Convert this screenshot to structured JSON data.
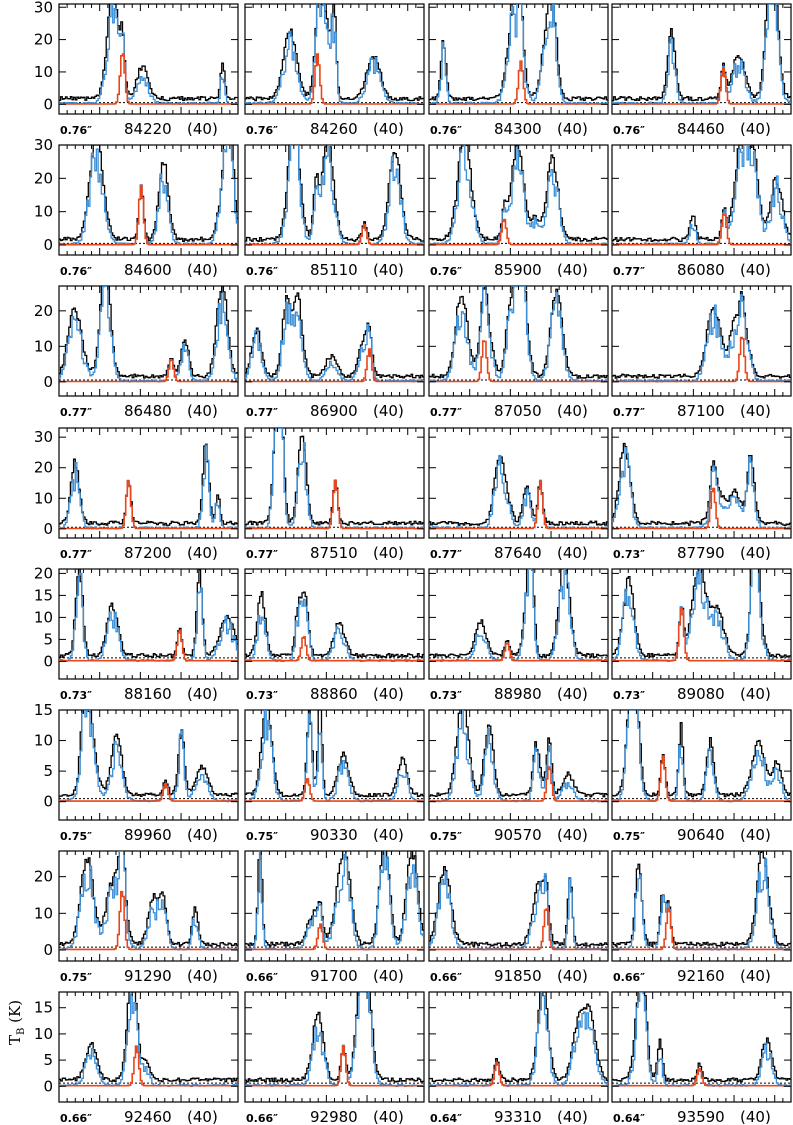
{
  "chart_data": {
    "type": "line",
    "title": "",
    "ylabel": "T",
    "ylabel_sub": "B",
    "ylabel_unit": " (K)",
    "colors": {
      "observed": "#000000",
      "model_all": "#3a8fd8",
      "model_species": "#e8461b",
      "baseline": "#000000"
    },
    "rows": [
      {
        "ylim": [
          -3,
          31
        ],
        "yticks": [
          0,
          10,
          20,
          30
        ]
      },
      {
        "ylim": [
          -3,
          30
        ],
        "yticks": [
          0,
          10,
          20,
          30
        ]
      },
      {
        "ylim": [
          -4,
          27
        ],
        "yticks": [
          0,
          10,
          20
        ]
      },
      {
        "ylim": [
          -3,
          33
        ],
        "yticks": [
          0,
          10,
          20,
          30
        ]
      },
      {
        "ylim": [
          -4,
          21
        ],
        "yticks": [
          0,
          5,
          10,
          15,
          20
        ]
      },
      {
        "ylim": [
          -3,
          15
        ],
        "yticks": [
          0,
          5,
          10,
          15
        ]
      },
      {
        "ylim": [
          -3,
          27
        ],
        "yticks": [
          0,
          10,
          20
        ]
      },
      {
        "ylim": [
          -3,
          18
        ],
        "yticks": [
          0,
          5,
          10,
          15
        ]
      }
    ],
    "panels": [
      {
        "freq": "84220",
        "width": "(40)",
        "res": "0.76″",
        "base": 0.5
      },
      {
        "freq": "84260",
        "width": "(40)",
        "res": "0.76″",
        "base": 0.5
      },
      {
        "freq": "84300",
        "width": "(40)",
        "res": "0.76″",
        "base": 0.5
      },
      {
        "freq": "84460",
        "width": "(40)",
        "res": "0.76″",
        "base": 0.5
      },
      {
        "freq": "84600",
        "width": "(40)",
        "res": "0.76″",
        "base": 0.5
      },
      {
        "freq": "85110",
        "width": "(40)",
        "res": "0.76″",
        "base": 0.5
      },
      {
        "freq": "85900",
        "width": "(40)",
        "res": "0.76″",
        "base": 0.5
      },
      {
        "freq": "86080",
        "width": "(40)",
        "res": "0.77″",
        "base": 0.5
      },
      {
        "freq": "86480",
        "width": "(40)",
        "res": "0.77″",
        "base": 0.5
      },
      {
        "freq": "86900",
        "width": "(40)",
        "res": "0.77″",
        "base": 0.5
      },
      {
        "freq": "87050",
        "width": "(40)",
        "res": "0.77″",
        "base": 0.5
      },
      {
        "freq": "87100",
        "width": "(40)",
        "res": "0.77″",
        "base": 0.5
      },
      {
        "freq": "87200",
        "width": "(40)",
        "res": "0.77″",
        "base": 0.5
      },
      {
        "freq": "87510",
        "width": "(40)",
        "res": "0.77″",
        "base": 0.5
      },
      {
        "freq": "87640",
        "width": "(40)",
        "res": "0.77″",
        "base": 0.5
      },
      {
        "freq": "87790",
        "width": "(40)",
        "res": "0.73″",
        "base": 0.5
      },
      {
        "freq": "88160",
        "width": "(40)",
        "res": "0.73″",
        "base": 0.8
      },
      {
        "freq": "88860",
        "width": "(40)",
        "res": "0.73″",
        "base": 0.8
      },
      {
        "freq": "88980",
        "width": "(40)",
        "res": "0.73″",
        "base": 0.8
      },
      {
        "freq": "89080",
        "width": "(40)",
        "res": "0.73″",
        "base": 0.8
      },
      {
        "freq": "89960",
        "width": "(40)",
        "res": "0.75″",
        "base": 0.5
      },
      {
        "freq": "90330",
        "width": "(40)",
        "res": "0.75″",
        "base": 0.5
      },
      {
        "freq": "90570",
        "width": "(40)",
        "res": "0.75″",
        "base": 0.5
      },
      {
        "freq": "90640",
        "width": "(40)",
        "res": "0.75″",
        "base": 0.5
      },
      {
        "freq": "91290",
        "width": "(40)",
        "res": "0.75″",
        "base": 0.8
      },
      {
        "freq": "91700",
        "width": "(40)",
        "res": "0.66″",
        "base": 0.8
      },
      {
        "freq": "91850",
        "width": "(40)",
        "res": "0.66″",
        "base": 0.8
      },
      {
        "freq": "92160",
        "width": "(40)",
        "res": "0.66″",
        "base": 0.8
      },
      {
        "freq": "92460",
        "width": "(40)",
        "res": "0.66″",
        "base": 0.6
      },
      {
        "freq": "92980",
        "width": "(40)",
        "res": "0.66″",
        "base": 0.6
      },
      {
        "freq": "93310",
        "width": "(40)",
        "res": "0.64″",
        "base": 0.6
      },
      {
        "freq": "93590",
        "width": "(40)",
        "res": "0.64″",
        "base": 0.6
      }
    ]
  }
}
